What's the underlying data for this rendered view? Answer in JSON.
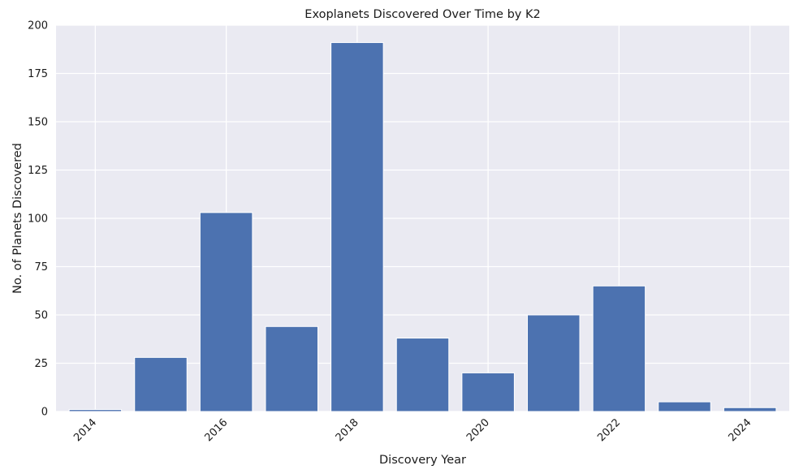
{
  "chart_data": {
    "type": "bar",
    "title": "Exoplanets Discovered Over Time by K2",
    "xlabel": "Discovery Year",
    "ylabel": "No. of Planets Discovered",
    "categories": [
      "2014",
      "2015",
      "2016",
      "2017",
      "2018",
      "2019",
      "2020",
      "2021",
      "2022",
      "2023",
      "2024"
    ],
    "values": [
      1,
      28,
      103,
      44,
      191,
      38,
      20,
      50,
      65,
      5,
      2
    ],
    "xticks": [
      "2014",
      "2016",
      "2018",
      "2020",
      "2022",
      "2024"
    ],
    "yticks": [
      "0",
      "25",
      "50",
      "75",
      "100",
      "125",
      "150",
      "175",
      "200"
    ],
    "ylim": [
      0,
      200
    ],
    "xlim": [
      2013.4,
      2024.6
    ],
    "grid": true,
    "bar_color": "#4c72b0",
    "background_color": "#eaeaf2",
    "grid_color": "#ffffff"
  }
}
